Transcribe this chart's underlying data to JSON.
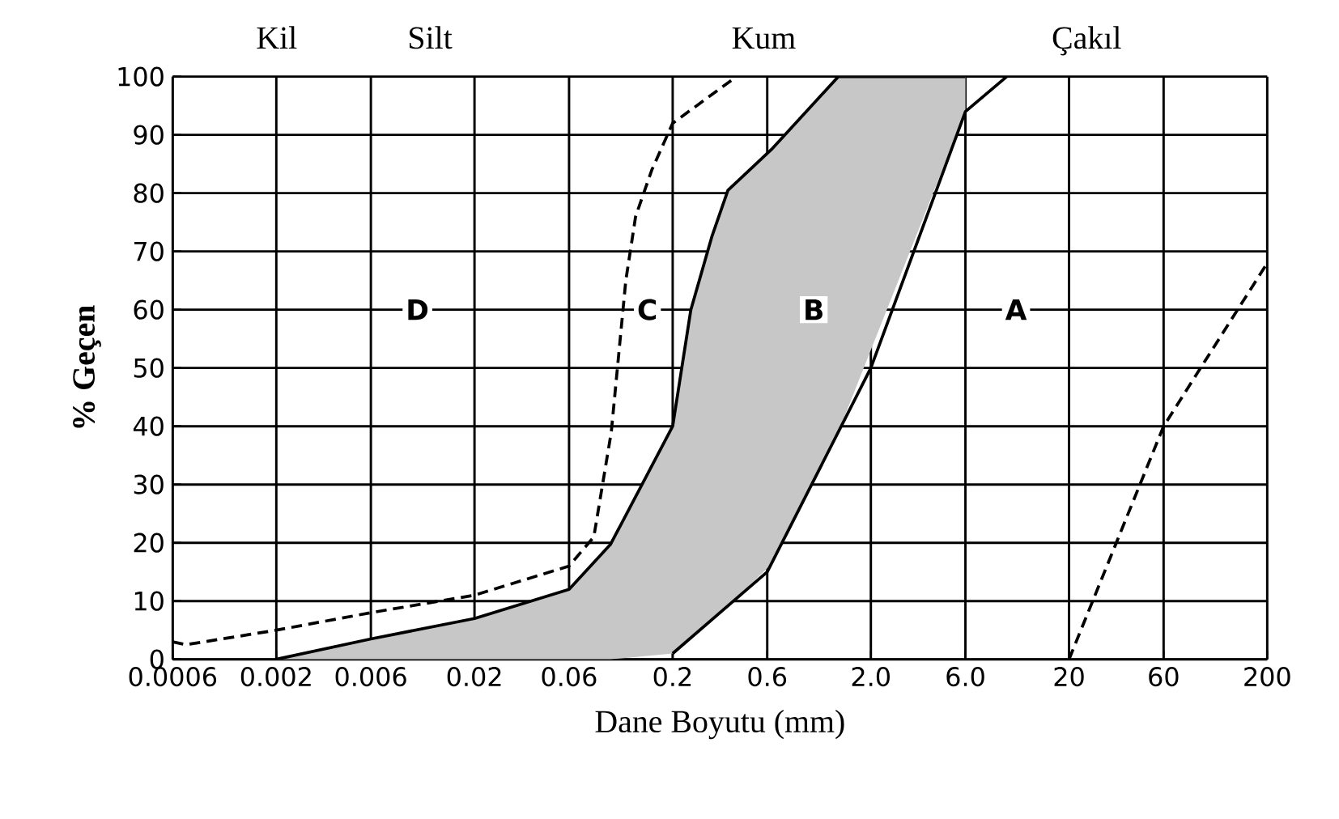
{
  "chart_data": {
    "type": "line",
    "xlabel": "Dane Boyutu (mm)",
    "ylabel": "% Geçen",
    "log": "x",
    "xlim": [
      0.0006,
      200
    ],
    "ylim": [
      0,
      100
    ],
    "xticks": [
      0.0006,
      0.002,
      0.006,
      0.02,
      0.06,
      0.2,
      0.6,
      {
        "value": 2,
        "label": "2.0"
      },
      {
        "value": 6,
        "label": "6.0"
      },
      20,
      60,
      200
    ],
    "yticks": [
      0,
      10,
      20,
      30,
      40,
      50,
      60,
      70,
      80,
      90,
      100
    ],
    "grid": true,
    "series": [
      {
        "color": "#000000",
        "line_style": "dashed",
        "x": [
          0.0006,
          0.0007,
          0.002,
          0.006,
          0.02,
          0.06,
          0.08,
          0.098,
          0.108,
          0.116,
          0.13,
          0.157,
          0.2,
          0.42
        ],
        "values": [
          3,
          2.5,
          5,
          8,
          11,
          16,
          21,
          39,
          54,
          65,
          76,
          84,
          92,
          100
        ]
      },
      {
        "color": "#000000",
        "line_style": "solid",
        "x": [
          0.002,
          0.006,
          0.02,
          0.06,
          0.097,
          0.2,
          0.247,
          0.315,
          0.38,
          0.63,
          1.37,
          6.0
        ],
        "values": [
          0,
          3.5,
          7,
          12,
          19.7,
          40,
          60,
          72.5,
          80.5,
          87.5,
          100,
          100
        ],
        "lower": [
          0,
          0,
          0,
          0,
          0,
          1,
          3.7,
          6.8,
          9.2,
          16.3,
          39,
          94
        ],
        "upper": [
          0,
          3.5,
          7,
          12,
          19.7,
          40,
          60,
          72.5,
          80.5,
          87.5,
          100,
          100
        ]
      },
      {
        "color": "#000000",
        "line_style": "solid",
        "x": [
          0.2,
          0.6,
          2.0,
          6.0,
          9.7
        ],
        "values": [
          1,
          15,
          50,
          94,
          100
        ]
      },
      {
        "color": "#000000",
        "line_style": "dashed",
        "x": [
          20,
          60,
          200
        ],
        "values": [
          0,
          40,
          68
        ]
      }
    ],
    "annotations": [
      "Kil",
      "Silt",
      "Kum",
      "Çakıl",
      {
        "text": "D",
        "x": 0.0103,
        "y": 60
      },
      {
        "text": "C",
        "x": 0.149,
        "y": 60
      },
      {
        "text": "B",
        "x": 1.03,
        "y": 60
      },
      {
        "text": "A",
        "x": 10.8,
        "y": 60
      }
    ]
  }
}
